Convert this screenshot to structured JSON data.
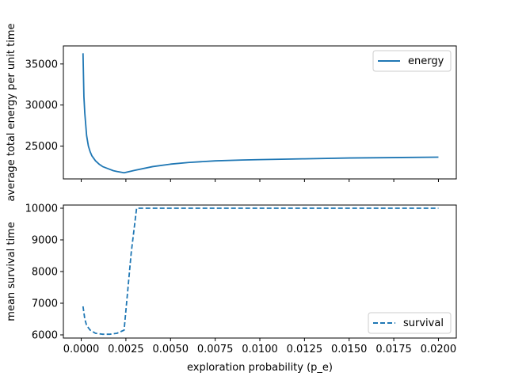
{
  "chart_data": [
    {
      "type": "line",
      "ylabel": "average total energy per unit time",
      "ylim": [
        21000,
        37200
      ],
      "yticks": [
        25000,
        30000,
        35000
      ],
      "xlim": [
        -0.001,
        0.021
      ],
      "xticks": [
        0.0,
        0.0025,
        0.005,
        0.0075,
        0.01,
        0.0125,
        0.015,
        0.0175,
        0.02
      ],
      "show_x_tick_labels": false,
      "legend_position": "top-right",
      "colors": {
        "line": "#1f77b4"
      },
      "series": [
        {
          "name": "energy",
          "style": "solid",
          "x": [
            0.0001,
            0.00015,
            0.0002,
            0.0003,
            0.0004,
            0.0005,
            0.0006,
            0.0008,
            0.001,
            0.0012,
            0.0015,
            0.0018,
            0.002,
            0.0024,
            0.003,
            0.004,
            0.005,
            0.006,
            0.0075,
            0.009,
            0.01,
            0.0125,
            0.015,
            0.0175,
            0.02
          ],
          "y": [
            36300,
            31000,
            29000,
            26300,
            25000,
            24300,
            23800,
            23200,
            22800,
            22500,
            22250,
            22000,
            21900,
            21750,
            22050,
            22500,
            22800,
            23000,
            23200,
            23300,
            23350,
            23450,
            23550,
            23600,
            23650
          ]
        }
      ]
    },
    {
      "type": "line",
      "ylabel": "mean survival time",
      "xlabel": "exploration probability (p_e)",
      "ylim": [
        5900,
        10100
      ],
      "yticks": [
        6000,
        7000,
        8000,
        9000,
        10000
      ],
      "xlim": [
        -0.001,
        0.021
      ],
      "xticks": [
        0.0,
        0.0025,
        0.005,
        0.0075,
        0.01,
        0.0125,
        0.015,
        0.0175,
        0.02
      ],
      "xtick_labels": [
        "0.0000",
        "0.0025",
        "0.0050",
        "0.0075",
        "0.0100",
        "0.0125",
        "0.0150",
        "0.0175",
        "0.0200"
      ],
      "legend_position": "bottom-right",
      "colors": {
        "line": "#1f77b4"
      },
      "series": [
        {
          "name": "survival",
          "style": "dashed",
          "x": [
            0.0001,
            0.0002,
            0.0003,
            0.0005,
            0.0008,
            0.0012,
            0.0016,
            0.002,
            0.0024,
            0.0028,
            0.0031,
            0.004,
            0.005,
            0.0075,
            0.01,
            0.0125,
            0.015,
            0.0175,
            0.02
          ],
          "y": [
            6900,
            6500,
            6300,
            6150,
            6050,
            6020,
            6020,
            6050,
            6150,
            8600,
            10000,
            10000,
            10000,
            10000,
            10000,
            10000,
            10000,
            10000,
            10000
          ]
        }
      ]
    }
  ]
}
